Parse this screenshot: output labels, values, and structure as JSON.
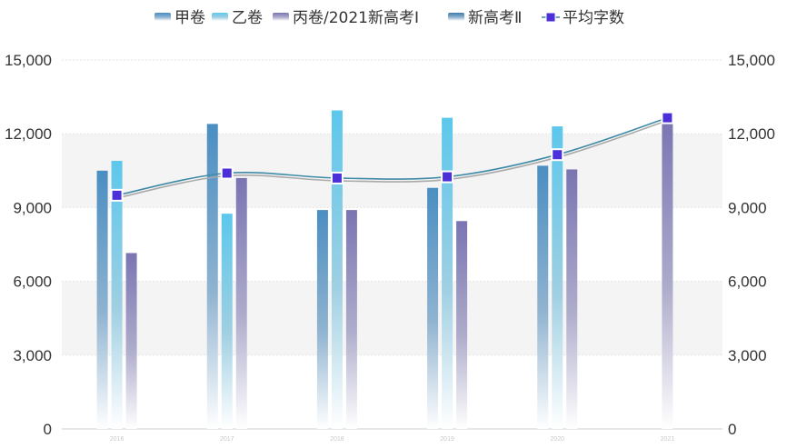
{
  "chart_data": {
    "type": "bar",
    "categories": [
      "2016",
      "2017",
      "2018",
      "2019",
      "2020",
      "2021"
    ],
    "series": [
      {
        "name": "甲卷",
        "values": [
          10500,
          12400,
          8900,
          9800,
          10700,
          null
        ],
        "color": "#4a8ec2"
      },
      {
        "name": "乙卷",
        "values": [
          10900,
          8750,
          12950,
          12650,
          12300,
          null
        ],
        "color": "#5cc8ec"
      },
      {
        "name": "丙卷/2021新高考Ⅰ",
        "values": [
          7150,
          10200,
          8900,
          8450,
          10550,
          12650
        ],
        "color": "#7a74b2"
      },
      {
        "name": "新高考Ⅱ",
        "values": [
          null,
          null,
          null,
          null,
          null,
          null
        ],
        "color": "#3b7aa8"
      }
    ],
    "line_series": {
      "name": "平均字数",
      "values": [
        9500,
        10400,
        10200,
        10250,
        11150,
        12650
      ],
      "color": "#4b2fd8"
    },
    "yticks": [
      "0",
      "3,000",
      "6,000",
      "9,000",
      "12,000",
      "15,000"
    ],
    "ylim": [
      0,
      15000
    ],
    "grid": "alternating bands",
    "legend_position": "top-center",
    "secondary_axis": true
  }
}
